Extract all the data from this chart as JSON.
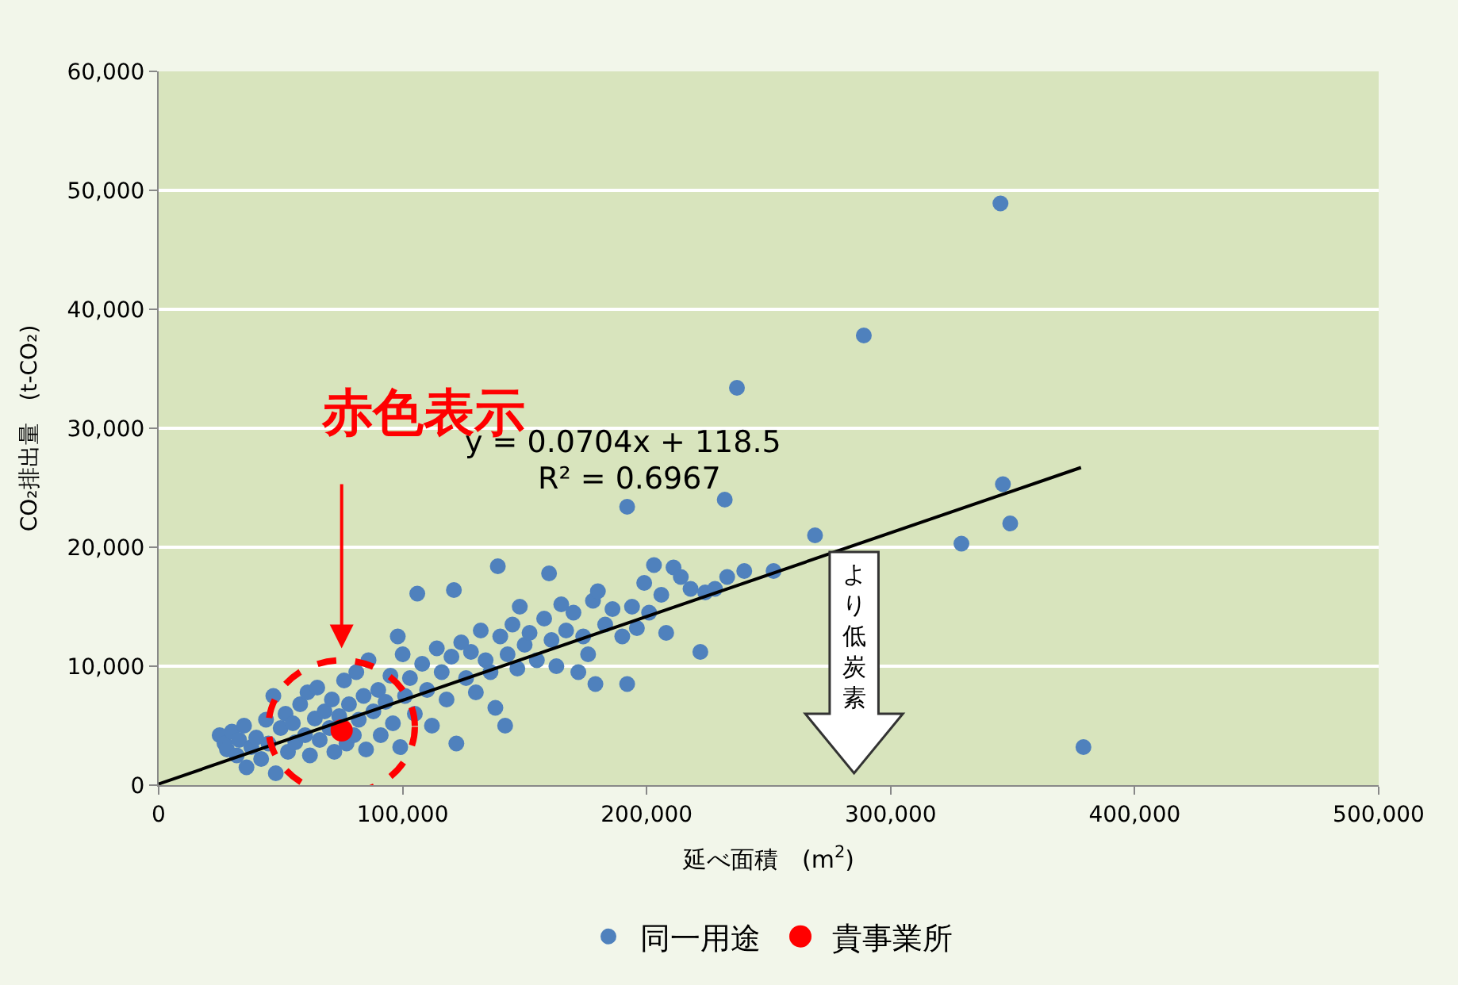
{
  "chart_data": {
    "type": "scatter",
    "xlabel": "延べ面積　(m$^{2}$)",
    "ylabel": "CO₂排出量　(t-CO₂)",
    "xlim": [
      0,
      500000
    ],
    "xticks": [
      0,
      {
        "value": 100000,
        "label": "100,000"
      },
      {
        "value": 200000,
        "label": "200,000"
      },
      {
        "value": 300000,
        "label": "300,000"
      },
      {
        "value": 400000,
        "label": "400,000"
      },
      {
        "value": 500000,
        "label": "500,000"
      }
    ],
    "ylim": [
      0,
      60000
    ],
    "yticks": [
      0,
      {
        "value": 10000,
        "label": "10,000"
      },
      {
        "value": 20000,
        "label": "20,000"
      },
      {
        "value": 30000,
        "label": "30,000"
      },
      {
        "value": 40000,
        "label": "40,000"
      },
      {
        "value": 50000,
        "label": "50,000"
      },
      {
        "value": 60000,
        "label": "60,000"
      }
    ],
    "grid": "y",
    "legend": "bottom",
    "marker": "circle",
    "series": [
      {
        "name": "同一用途",
        "color": "#4f81bd",
        "x": [
          25000,
          27000,
          28000,
          30000,
          32000,
          33000,
          35000,
          36000,
          38000,
          40000,
          42000,
          44000,
          45000,
          47000,
          48000,
          50000,
          52000,
          53000,
          55000,
          56000,
          58000,
          60000,
          61000,
          62000,
          64000,
          65000,
          66000,
          68000,
          70000,
          71000,
          72000,
          74000,
          76000,
          77000,
          78000,
          80000,
          81000,
          82000,
          84000,
          85000,
          86000,
          88000,
          90000,
          91000,
          93000,
          95000,
          96000,
          98000,
          99000,
          100000,
          101000,
          103000,
          105000,
          106000,
          108000,
          110000,
          112000,
          114000,
          116000,
          118000,
          120000,
          121000,
          122000,
          124000,
          126000,
          128000,
          130000,
          132000,
          134000,
          136000,
          138000,
          139000,
          140000,
          142000,
          143000,
          145000,
          147000,
          148000,
          150000,
          152000,
          155000,
          158000,
          160000,
          161000,
          163000,
          165000,
          167000,
          170000,
          172000,
          174000,
          176000,
          178000,
          179000,
          180000,
          183000,
          186000,
          190000,
          192000,
          194000,
          196000,
          199000,
          201000,
          203000,
          206000,
          208000,
          211000,
          214000,
          218000,
          222000,
          224000,
          228000,
          233000,
          240000,
          192000,
          232000,
          237000,
          252000,
          269000,
          289000,
          329000,
          345000,
          346000,
          349000,
          379000
        ],
        "values": [
          4200,
          3500,
          3000,
          4500,
          2500,
          3800,
          5000,
          1500,
          3200,
          4000,
          2200,
          5500,
          3500,
          7500,
          1000,
          4800,
          6000,
          2800,
          5200,
          3600,
          6800,
          4200,
          7800,
          2500,
          5600,
          8200,
          3800,
          6200,
          4800,
          7200,
          2800,
          5800,
          8800,
          3500,
          6800,
          4200,
          9500,
          5500,
          7500,
          3000,
          10500,
          6200,
          8000,
          4200,
          7000,
          9200,
          5200,
          12500,
          3200,
          11000,
          7500,
          9000,
          6000,
          16100,
          10200,
          8000,
          5000,
          11500,
          9500,
          7200,
          10800,
          16400,
          3500,
          12000,
          9000,
          11200,
          7800,
          13000,
          10500,
          9500,
          6500,
          18400,
          12500,
          5000,
          11000,
          13500,
          9800,
          15000,
          11800,
          12800,
          10500,
          14000,
          17800,
          12200,
          10000,
          15200,
          13000,
          14500,
          9500,
          12500,
          11000,
          15500,
          8500,
          16300,
          13500,
          14800,
          12500,
          8500,
          15000,
          13200,
          17000,
          14500,
          18500,
          16000,
          12800,
          18300,
          17500,
          16500,
          11200,
          16200,
          16500,
          17500,
          18000,
          23400,
          24000,
          33400,
          18000,
          21000,
          37800,
          20300,
          48900,
          25300,
          22000,
          3200
        ]
      },
      {
        "name": "貴事業所",
        "color": "#ff0000",
        "x": [
          75000
        ],
        "values": [
          4600
        ]
      },
      {
        "type": "line",
        "marker": "none",
        "color": "#000000",
        "x": [
          0,
          378000
        ],
        "values": [
          100,
          26700
        ]
      }
    ],
    "annotations": [
      "赤色表示",
      "y = 0.0704x + 118.5",
      "R² = 0.6967",
      "より低炭素"
    ]
  }
}
